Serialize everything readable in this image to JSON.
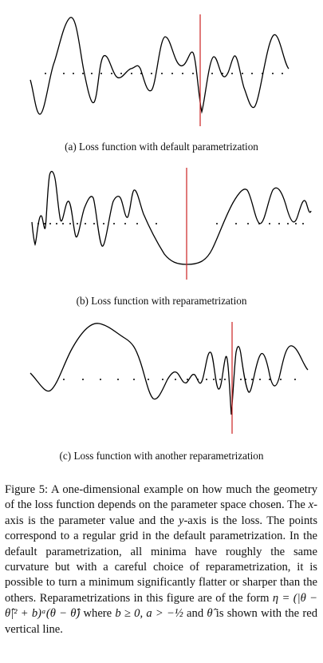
{
  "subfigures": [
    {
      "caption": "(a) Loss function with default parametrization"
    },
    {
      "caption": "(b) Loss function with reparametrization"
    },
    {
      "caption": "(c) Loss function with another reparametrization"
    }
  ],
  "figure_caption": {
    "label": "Figure 5:",
    "text_1": " A one-dimensional example on how much the geometry of the loss function depends on the parameter space chosen. The ",
    "x": "x",
    "text_2": "-axis is the parameter value and the ",
    "y": "y",
    "text_3": "-axis is the loss. The points correspond to a regular grid in the default parametrization. In the default parametrization, all minima have roughly the same curvature but with a careful choice of reparametrization, it is possible to turn a minimum significantly flatter or sharper than the others. Reparametrizations in this figure are of the form ",
    "formula": "η = (|θ − θ̂|² + b)ᵃ(θ − θ̂)",
    "text_4": " where ",
    "condition": "b ≥ 0, a > −½",
    "text_5": " and ",
    "theta_hat": "θ̂",
    "text_6": " is shown with the red vertical line."
  },
  "colors": {
    "curve": "#000000",
    "marker": "#cc2222",
    "dots": "#000000"
  }
}
